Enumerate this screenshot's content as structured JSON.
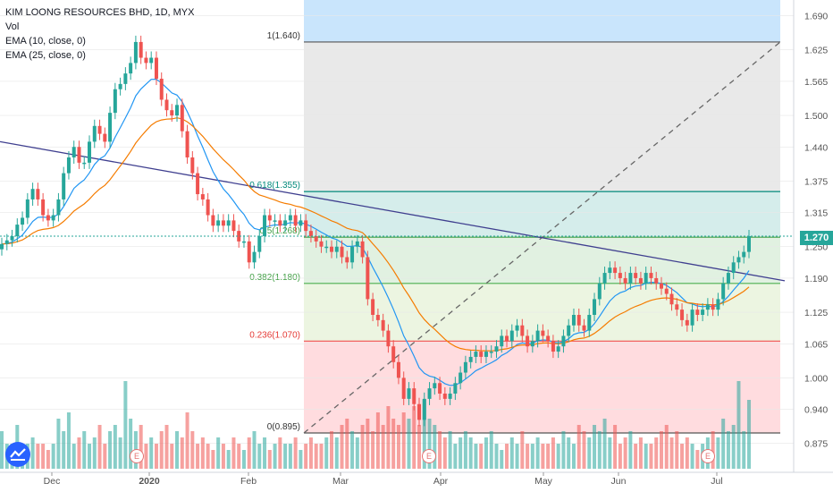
{
  "legend": {
    "title": "KIM LOONG RESOURCES BHD, 1D, MYX",
    "vol": "Vol",
    "ema10": "EMA (10, close, 0)",
    "ema25": "EMA (25, close, 0)"
  },
  "colors": {
    "up": "#26a69a",
    "down": "#ef5350",
    "ema10": "#2196f3",
    "ema25": "#f57c00",
    "trendline": "#3f3f8f"
  },
  "current_price_label": "1.270",
  "earnings_marker": "E",
  "chart_data": {
    "type": "candlestick",
    "title": "KIM LOONG RESOURCES BHD, 1D, MYX",
    "y_axis": {
      "ticks": [
        "0.875",
        "0.940",
        "1.000",
        "1.065",
        "1.125",
        "1.190",
        "1.250",
        "1.315",
        "1.375",
        "1.440",
        "1.500",
        "1.565",
        "1.625",
        "1.690"
      ],
      "range": [
        0.82,
        1.72
      ],
      "position": "right"
    },
    "x_axis": {
      "ticks": [
        "Dec",
        "2020",
        "Feb",
        "Mar",
        "Apr",
        "May",
        "Jun",
        "Jul"
      ]
    },
    "fibonacci": {
      "levels": [
        {
          "label": "1(1.640)",
          "value": 1.64
        },
        {
          "label": "0.618(1.355)",
          "value": 1.355
        },
        {
          "label": "0.5(1.268)",
          "value": 1.268
        },
        {
          "label": "0.382(1.180)",
          "value": 1.18
        },
        {
          "label": "0.236(1.070)",
          "value": 1.07
        },
        {
          "label": "0(0.895)",
          "value": 0.895
        }
      ],
      "start_date": "Feb 17",
      "end_date": "Jul 20"
    },
    "trendline": {
      "from": 1.45,
      "to": 1.185
    },
    "current_price": 1.27,
    "closes": [
      1.255,
      1.262,
      1.27,
      1.292,
      1.305,
      1.34,
      1.36,
      1.34,
      1.31,
      1.3,
      1.31,
      1.34,
      1.39,
      1.42,
      1.44,
      1.41,
      1.41,
      1.45,
      1.48,
      1.465,
      1.45,
      1.505,
      1.55,
      1.56,
      1.58,
      1.6,
      1.64,
      1.61,
      1.6,
      1.61,
      1.57,
      1.53,
      1.51,
      1.5,
      1.52,
      1.47,
      1.42,
      1.39,
      1.35,
      1.34,
      1.31,
      1.29,
      1.3,
      1.29,
      1.3,
      1.28,
      1.26,
      1.26,
      1.22,
      1.24,
      1.27,
      1.31,
      1.3,
      1.3,
      1.29,
      1.3,
      1.31,
      1.29,
      1.3,
      1.28,
      1.27,
      1.26,
      1.25,
      1.25,
      1.24,
      1.25,
      1.23,
      1.22,
      1.25,
      1.26,
      1.23,
      1.15,
      1.12,
      1.11,
      1.09,
      1.06,
      1.03,
      1.0,
      0.96,
      0.98,
      0.95,
      0.92,
      0.96,
      0.98,
      0.99,
      0.97,
      0.96,
      0.97,
      0.99,
      1.01,
      1.03,
      1.04,
      1.05,
      1.04,
      1.05,
      1.05,
      1.06,
      1.08,
      1.07,
      1.09,
      1.1,
      1.08,
      1.06,
      1.07,
      1.09,
      1.08,
      1.07,
      1.05,
      1.06,
      1.08,
      1.1,
      1.12,
      1.1,
      1.09,
      1.12,
      1.15,
      1.18,
      1.2,
      1.21,
      1.2,
      1.19,
      1.18,
      1.2,
      1.19,
      1.18,
      1.2,
      1.19,
      1.18,
      1.17,
      1.16,
      1.14,
      1.13,
      1.11,
      1.1,
      1.13,
      1.12,
      1.13,
      1.14,
      1.13,
      1.15,
      1.18,
      1.2,
      1.22,
      1.23,
      1.24,
      1.27
    ],
    "volume_scale": [
      0.3,
      0.2,
      0.2,
      0.35,
      0.15,
      0.2,
      0.25,
      0.2,
      0.2,
      0.15,
      0.2,
      0.4,
      0.3,
      0.45,
      0.2,
      0.25,
      0.3,
      0.2,
      0.25,
      0.35,
      0.2,
      0.3,
      0.35,
      0.25,
      0.7,
      0.4,
      0.3,
      0.35,
      0.2,
      0.25,
      0.2,
      0.3,
      0.35,
      0.2,
      0.3,
      0.25,
      0.45,
      0.3,
      0.2,
      0.25,
      0.2,
      0.15,
      0.25,
      0.2,
      0.15,
      0.25,
      0.2,
      0.15,
      0.25,
      0.3,
      0.2,
      0.25,
      0.15,
      0.2,
      0.25,
      0.2,
      0.2,
      0.25,
      0.15,
      0.2,
      0.25,
      0.2,
      0.2,
      0.25,
      0.3,
      0.25,
      0.35,
      0.4,
      0.3,
      0.25,
      0.35,
      0.4,
      0.3,
      0.45,
      0.35,
      0.5,
      0.4,
      0.35,
      0.45,
      0.4,
      0.5,
      0.35,
      0.55,
      0.4,
      0.35,
      0.3,
      0.25,
      0.3,
      0.2,
      0.25,
      0.3,
      0.25,
      0.2,
      0.2,
      0.25,
      0.3,
      0.2,
      0.15,
      0.2,
      0.25,
      0.2,
      0.3,
      0.2,
      0.2,
      0.25,
      0.2,
      0.2,
      0.25,
      0.2,
      0.3,
      0.25,
      0.2,
      0.35,
      0.3,
      0.25,
      0.35,
      0.3,
      0.4,
      0.25,
      0.35,
      0.2,
      0.25,
      0.3,
      0.2,
      0.25,
      0.2,
      0.2,
      0.25,
      0.3,
      0.35,
      0.25,
      0.3,
      0.2,
      0.25,
      0.2,
      0.15,
      0.2,
      0.25,
      0.3,
      0.25,
      0.4,
      0.3,
      0.35,
      0.7,
      0.3,
      0.55
    ]
  }
}
